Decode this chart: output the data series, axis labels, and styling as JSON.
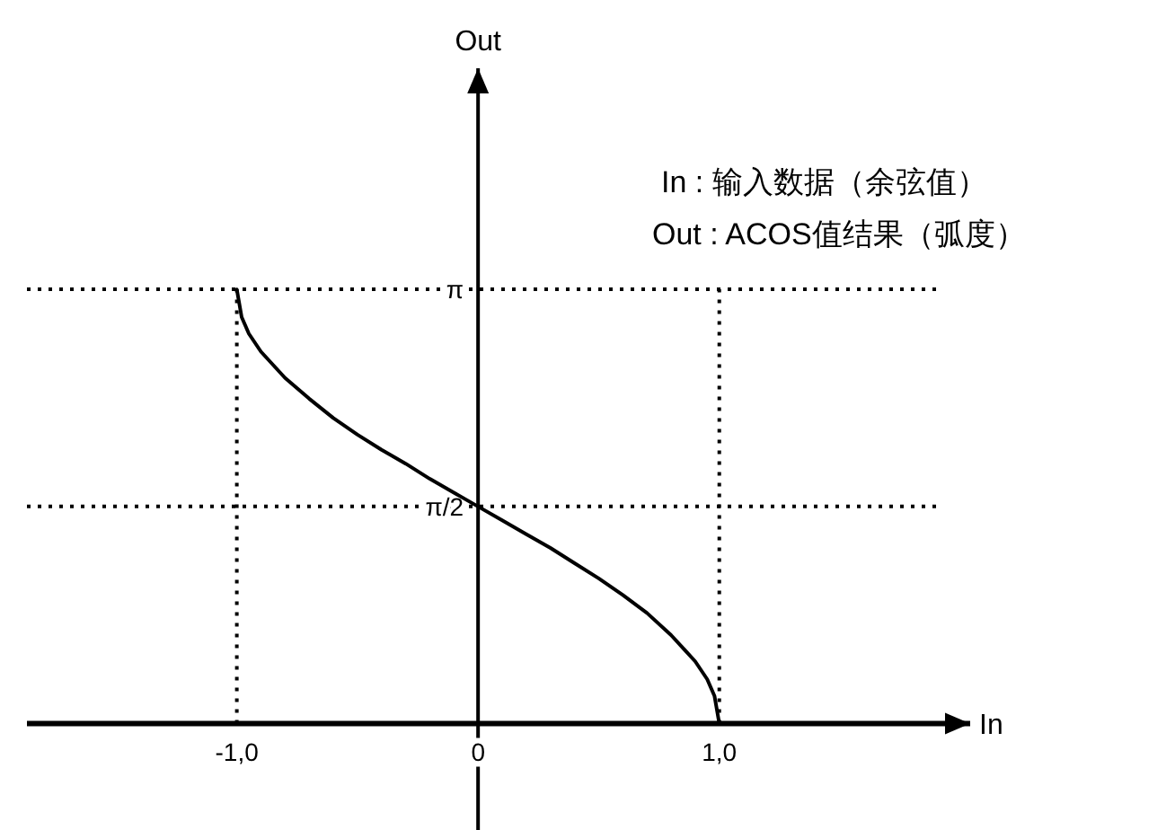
{
  "chart_data": {
    "type": "line",
    "xlabel": "In",
    "ylabel": "Out",
    "annotations": [
      "In : 输入数据（余弦值）",
      "Out : ACOS值结果（弧度）"
    ],
    "x": [
      -1,
      -0.98,
      -0.95,
      -0.9,
      -0.8,
      -0.7,
      -0.6,
      -0.5,
      -0.4,
      -0.3,
      -0.2,
      -0.1,
      0,
      0.1,
      0.2,
      0.3,
      0.4,
      0.5,
      0.6,
      0.7,
      0.8,
      0.9,
      0.95,
      0.98,
      1
    ],
    "series": [
      {
        "color": "#000000",
        "values": [
          3.14,
          2.94,
          2.82,
          2.69,
          2.5,
          2.35,
          2.21,
          2.09,
          1.98,
          1.88,
          1.77,
          1.67,
          1.57,
          1.47,
          1.37,
          1.27,
          1.16,
          1.05,
          0.93,
          0.8,
          0.64,
          0.45,
          0.32,
          0.2,
          0
        ]
      }
    ],
    "xlim": [
      -1.87,
      2.04
    ],
    "ylim": [
      -0.77,
      4.74
    ],
    "xticks": [
      {
        "value": -1,
        "label": "-1,0"
      },
      {
        "value": 0,
        "label": "0"
      },
      {
        "value": 1,
        "label": "1,0"
      }
    ],
    "yticks": [
      {
        "value": 1.5708,
        "label": "π/2"
      },
      {
        "value": 3.1416,
        "label": "π"
      }
    ],
    "ref_lines": [
      {
        "axis": "y",
        "value": 3.1416,
        "color": "#000000",
        "line_style": "dotted"
      },
      {
        "axis": "y",
        "value": 1.5708,
        "color": "#000000",
        "line_style": "dotted"
      },
      {
        "axis": "x",
        "value": -1,
        "color": "#000000",
        "line_style": "dotted"
      },
      {
        "axis": "x",
        "value": 1,
        "color": "#000000",
        "line_style": "dotted"
      }
    ]
  }
}
